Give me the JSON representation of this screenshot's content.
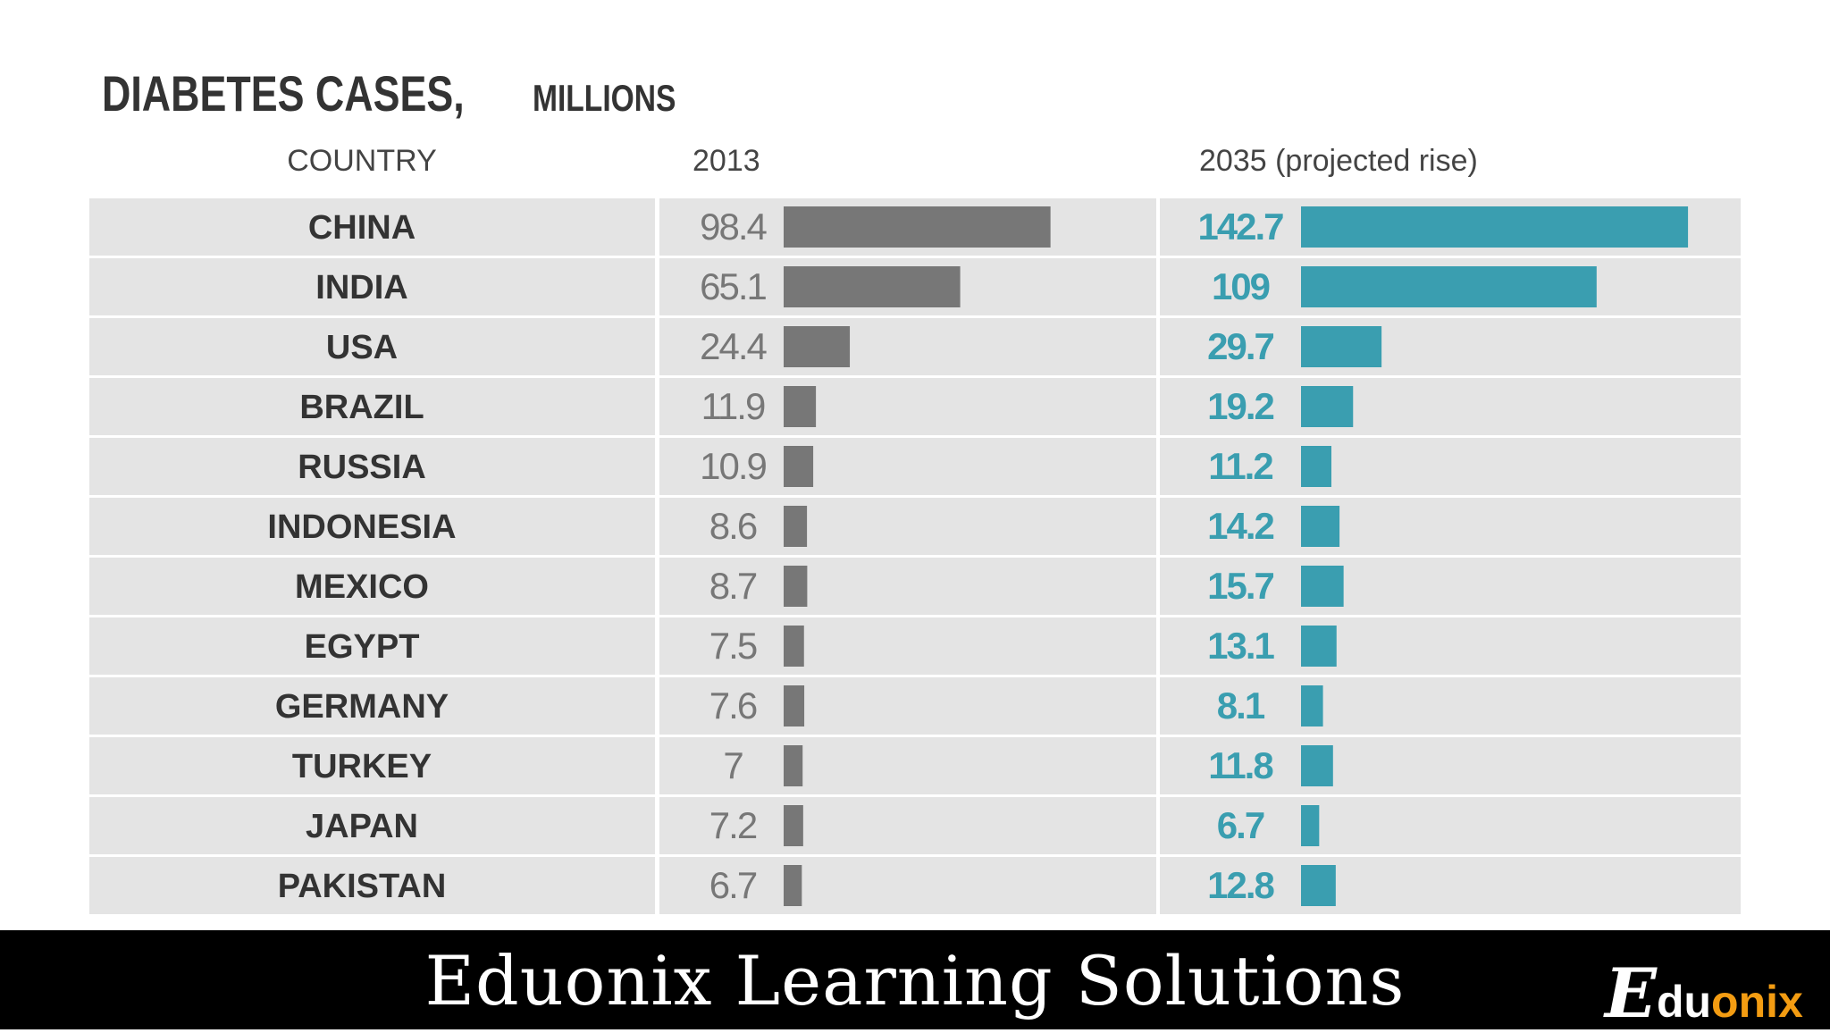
{
  "chart_data": {
    "type": "table",
    "title": "DIABETES CASES,",
    "subtitle": "MILLIONS",
    "columns": [
      "COUNTRY",
      "2013",
      "2035 (projected rise)"
    ],
    "categories": [
      "CHINA",
      "INDIA",
      "USA",
      "BRAZIL",
      "RUSSIA",
      "INDONESIA",
      "MEXICO",
      "EGYPT",
      "GERMANY",
      "TURKEY",
      "JAPAN",
      "PAKISTAN"
    ],
    "series": [
      {
        "name": "2013",
        "values": [
          98.4,
          65.1,
          24.4,
          11.9,
          10.9,
          8.6,
          8.7,
          7.5,
          7.6,
          7,
          7.2,
          6.7
        ],
        "labels": [
          "98.4",
          "65.1",
          "24.4",
          "11.9",
          "10.9",
          "8.6",
          "8.7",
          "7.5",
          "7.6",
          "7",
          "7.2",
          "6.7"
        ],
        "color": "#777777"
      },
      {
        "name": "2035 (projected rise)",
        "values": [
          142.7,
          109,
          29.7,
          19.2,
          11.2,
          14.2,
          15.7,
          13.1,
          8.1,
          11.8,
          6.7,
          12.8
        ],
        "labels": [
          "142.7",
          "109",
          "29.7",
          "19.2",
          "11.2",
          "14.2",
          "15.7",
          "13.1",
          "8.1",
          "11.8",
          "6.7",
          "12.8"
        ],
        "color": "#3a9eb0"
      }
    ],
    "row_color": "#e4e4e4",
    "grid": false,
    "legend": "none"
  },
  "footer": {
    "text": "Eduonix Learning Solutions",
    "logo": {
      "e": "E",
      "du": "du",
      "onix": "onix"
    }
  }
}
